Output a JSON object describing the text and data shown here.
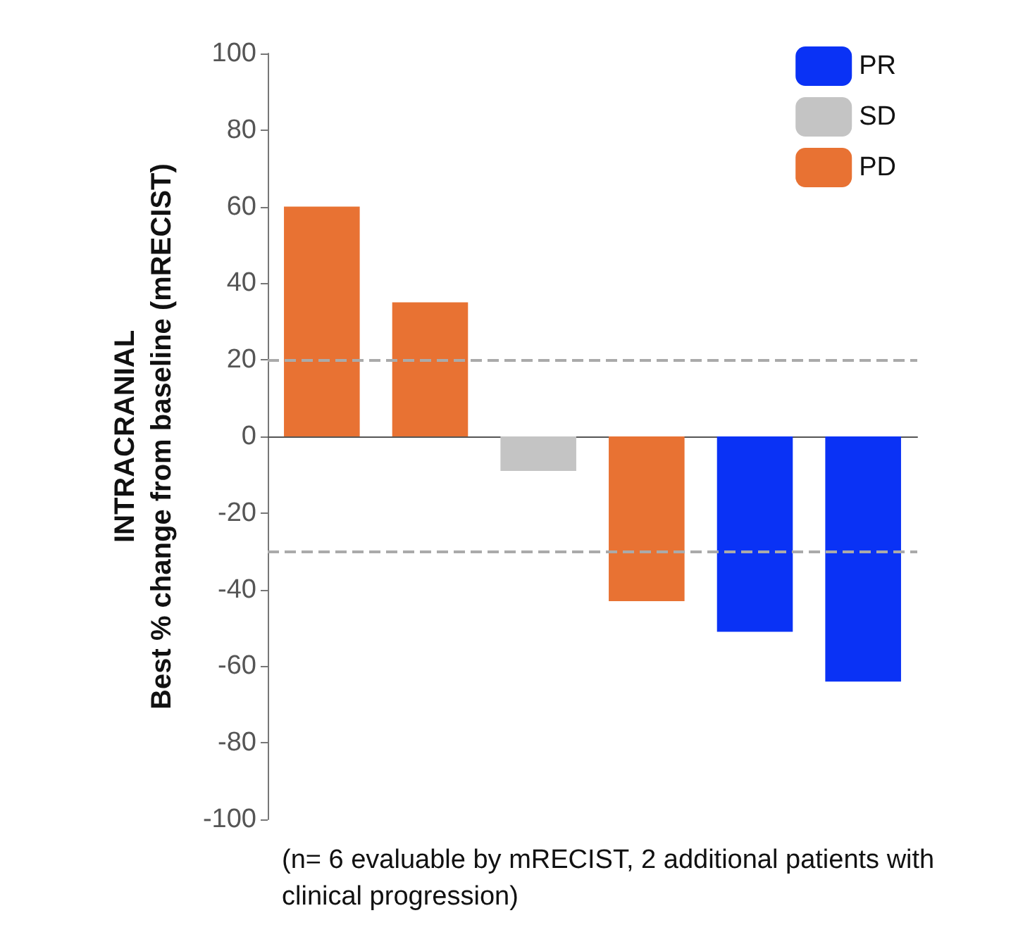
{
  "chart_data": {
    "type": "bar",
    "ylabel": "INTRACRANIAL\nBest % change from baseline (mRECIST)",
    "categories": [
      null,
      null,
      null,
      null,
      null,
      null
    ],
    "series": [
      {
        "name": "PR",
        "color": "#0a32f5",
        "values": [
          null,
          null,
          null,
          null,
          -51,
          -64
        ]
      },
      {
        "name": "SD",
        "color": "#c4c4c4",
        "values": [
          null,
          null,
          -9,
          null,
          null,
          null
        ]
      },
      {
        "name": "PD",
        "color": "#e87233",
        "values": [
          60,
          35,
          null,
          -43,
          null,
          null
        ]
      }
    ],
    "stacked": true,
    "ylim": [
      -100,
      100
    ],
    "yticks": [
      -100,
      -80,
      -60,
      -40,
      -20,
      0,
      20,
      40,
      60,
      80,
      100
    ],
    "grid": false,
    "legend": "top right",
    "ref_lines": [
      {
        "axis": "y",
        "value": 20,
        "color": "#aaaaaa",
        "line_style": "dashed"
      },
      {
        "axis": "y",
        "value": -30,
        "color": "#aaaaaa",
        "line_style": "dashed"
      }
    ],
    "annotations": [
      "(n= 6 evaluable by mRECIST, 2 additional patients with clinical progression)"
    ]
  }
}
